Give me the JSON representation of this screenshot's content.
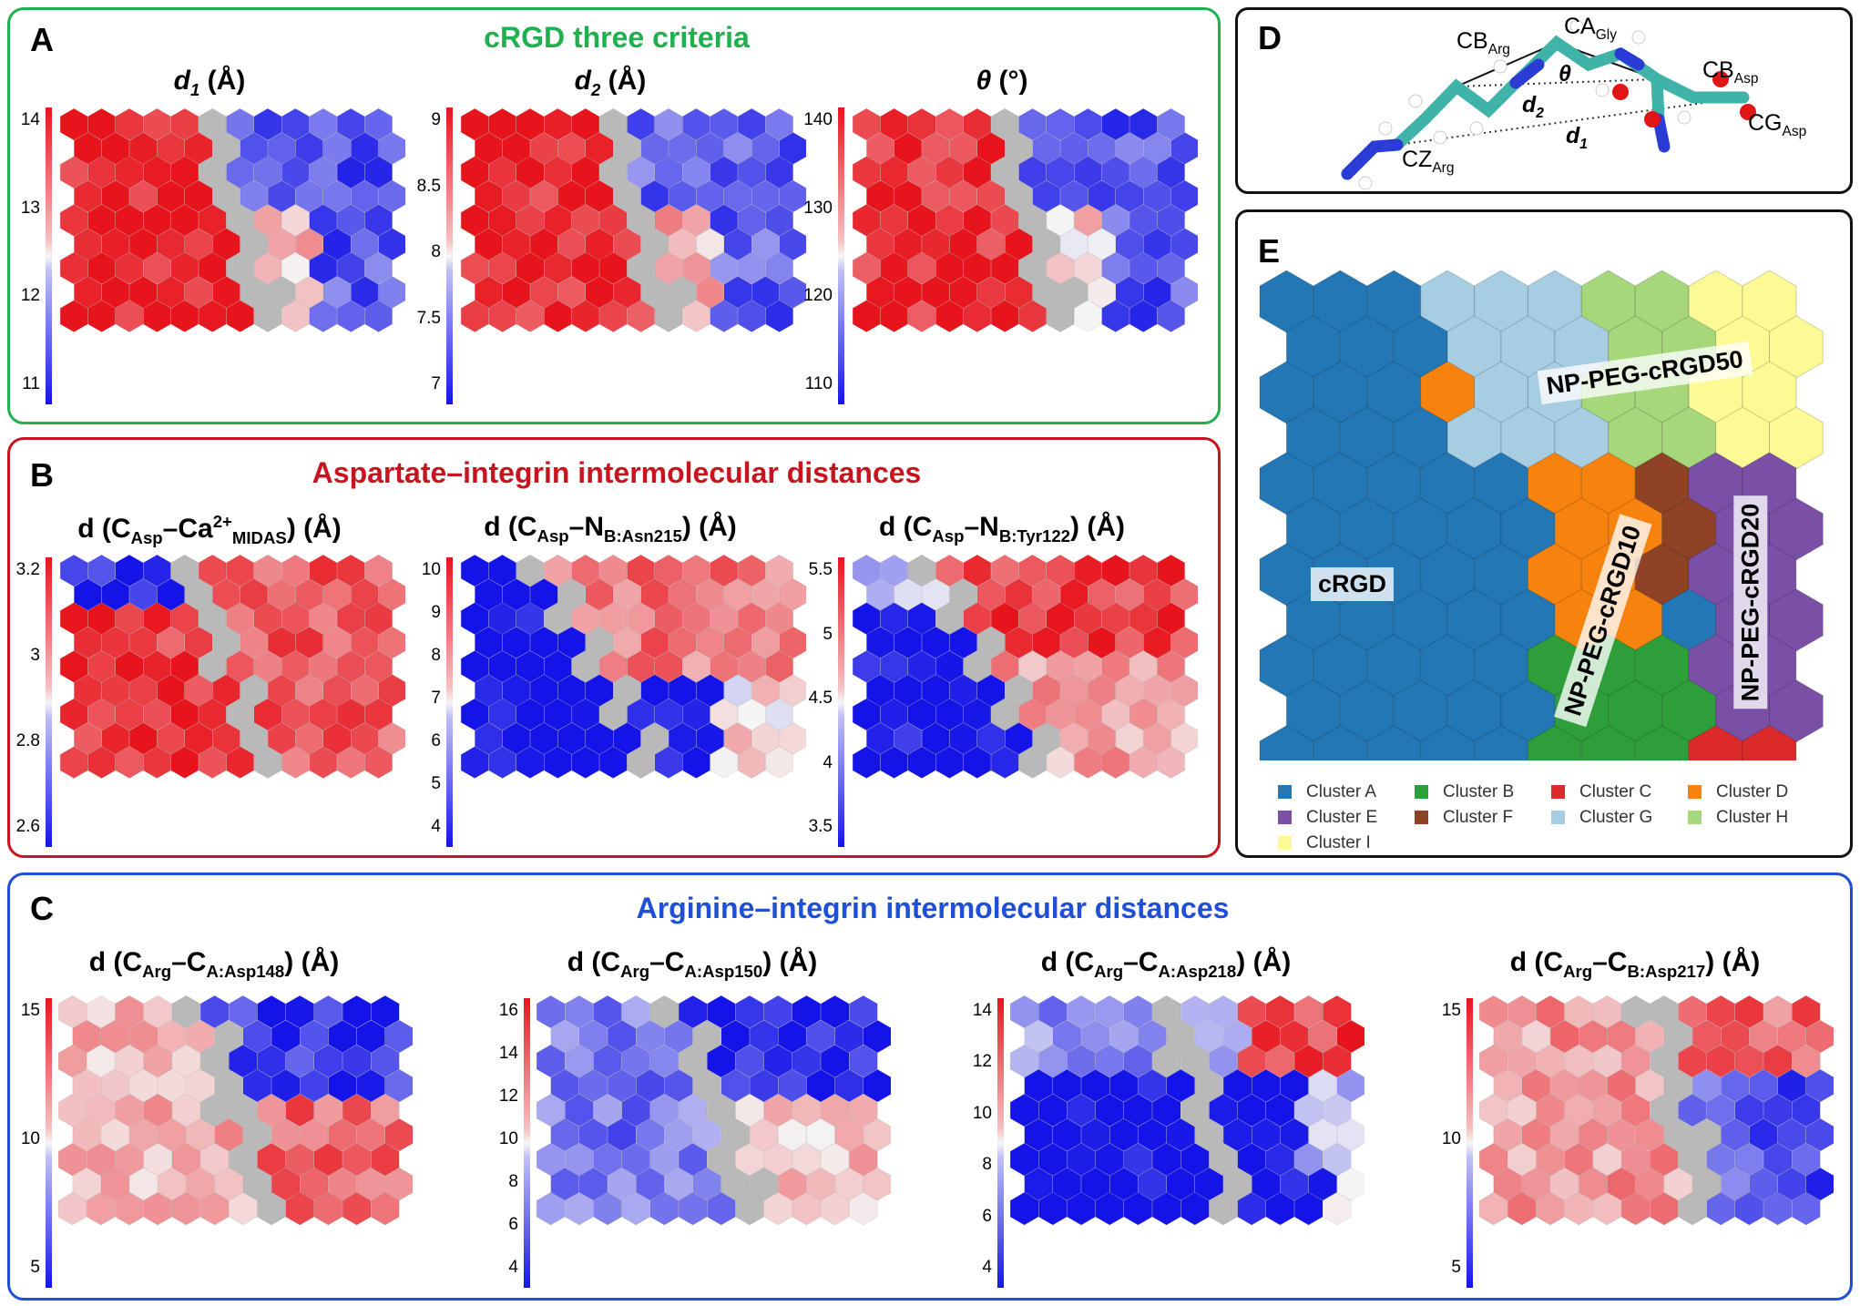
{
  "panel_a": {
    "letter": "A",
    "title": "cRGD three criteria",
    "maps": [
      {
        "name": "d1",
        "label_main": "d",
        "label_sub": "1",
        "label_unit": " (Å)",
        "italic": true,
        "ticks": [
          "14",
          "13",
          "12",
          "11"
        ]
      },
      {
        "name": "d2",
        "label_main": "d",
        "label_sub": "2",
        "label_unit": " (Å)",
        "italic": true,
        "ticks": [
          "9",
          "8.5",
          "8",
          "7.5",
          "7"
        ]
      },
      {
        "name": "theta",
        "label_main": "θ",
        "label_sub": "",
        "label_unit": " (°)",
        "italic": true,
        "ticks": [
          "140",
          "130",
          "120",
          "110"
        ]
      }
    ]
  },
  "panel_b": {
    "letter": "B",
    "title": "Aspartate–integrin intermolecular distances",
    "maps": [
      {
        "name": "ca-midas",
        "label_pre": "d (C",
        "label_sub1": "Asp",
        "label_mid": "–Ca",
        "label_sup": "2+",
        "label_sub2": "MIDAS",
        "label_post": ") (Å)",
        "ticks": [
          "3.2",
          "3",
          "2.8",
          "2.6"
        ]
      },
      {
        "name": "asn215",
        "label_pre": "d (C",
        "label_sub1": "Asp",
        "label_mid": "–N",
        "label_sup": "",
        "label_sub2": "B:Asn215",
        "label_post": ") (Å)",
        "ticks": [
          "10",
          "9",
          "8",
          "7",
          "6",
          "5",
          "4"
        ]
      },
      {
        "name": "tyr122",
        "label_pre": "d (C",
        "label_sub1": "Asp",
        "label_mid": "–N",
        "label_sup": "",
        "label_sub2": "B:Tyr122",
        "label_post": ") (Å)",
        "ticks": [
          "5.5",
          "5",
          "4.5",
          "4",
          "3.5"
        ]
      }
    ]
  },
  "panel_c": {
    "letter": "C",
    "title": "Arginine–integrin intermolecular distances",
    "maps": [
      {
        "name": "asp148",
        "label_pre": "d (C",
        "label_sub1": "Arg",
        "label_mid": "–C",
        "label_sub2": "A:Asp148",
        "label_post": ") (Å)",
        "ticks": [
          "15",
          "10",
          "5"
        ]
      },
      {
        "name": "asp150",
        "label_pre": "d (C",
        "label_sub1": "Arg",
        "label_mid": "–C",
        "label_sub2": "A:Asp150",
        "label_post": ") (Å)",
        "ticks": [
          "16",
          "14",
          "12",
          "10",
          "8",
          "6",
          "4"
        ]
      },
      {
        "name": "asp218",
        "label_pre": "d (C",
        "label_sub1": "Arg",
        "label_mid": "–C",
        "label_sub2": "A:Asp218",
        "label_post": ") (Å)",
        "ticks": [
          "14",
          "12",
          "10",
          "8",
          "6",
          "4"
        ]
      },
      {
        "name": "asp217",
        "label_pre": "d (C",
        "label_sub1": "Arg",
        "label_mid": "–C",
        "label_sub2": "B:Asp217",
        "label_post": ") (Å)",
        "ticks": [
          "15",
          "10",
          "5"
        ]
      }
    ]
  },
  "panel_d": {
    "letter": "D",
    "atoms": {
      "cb_arg": {
        "main": "CB",
        "sub": "Arg"
      },
      "ca_gly": {
        "main": "CA",
        "sub": "Gly"
      },
      "cb_asp": {
        "main": "CB",
        "sub": "Asp"
      },
      "cg_asp": {
        "main": "CG",
        "sub": "Asp"
      },
      "cz_arg": {
        "main": "CZ",
        "sub": "Arg"
      }
    },
    "theta": "θ",
    "d2": {
      "main": "d",
      "sub": "2"
    },
    "d1": {
      "main": "d",
      "sub": "1"
    }
  },
  "panel_e": {
    "letter": "E",
    "labels": {
      "crgd": "cRGD",
      "np50": "NP-PEG-cRGD50",
      "np10": "NP-PEG-cRGD10",
      "np20": "NP-PEG-cRGD20"
    },
    "legend": [
      {
        "label": "Cluster  A",
        "color": "#2477b5"
      },
      {
        "label": "Cluster  B",
        "color": "#2e9e3a"
      },
      {
        "label": "Cluster  C",
        "color": "#dc2a2a"
      },
      {
        "label": "Cluster  D",
        "color": "#f7820e"
      },
      {
        "label": "Cluster  E",
        "color": "#7a50a6"
      },
      {
        "label": "Cluster  F",
        "color": "#8f4326"
      },
      {
        "label": "Cluster  G",
        "color": "#a7cde3"
      },
      {
        "label": "Cluster  H",
        "color": "#a6d77a"
      },
      {
        "label": "Cluster  I",
        "color": "#fbfa95"
      }
    ]
  },
  "colors": {
    "green_frame": "#1fb14f",
    "red_frame": "#c8141e",
    "blue_frame": "#1e4fd6",
    "heat_high": "#e8141c",
    "heat_low": "#1414e8",
    "boundary": "#b9b9b9"
  }
}
